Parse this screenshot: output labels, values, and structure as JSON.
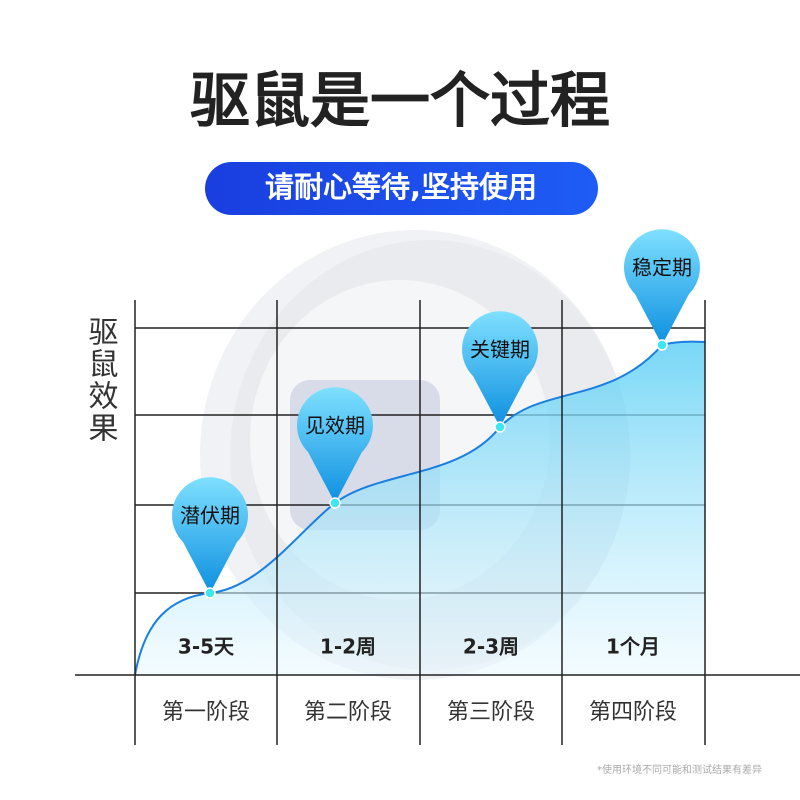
{
  "title": "驱鼠是一个过程",
  "subtitle": "请耐心等待,坚持使用",
  "y_axis_label": "驱鼠效果",
  "stages": [
    {
      "pin": "潜伏期",
      "duration": "3-5天",
      "name": "第一阶段"
    },
    {
      "pin": "见效期",
      "duration": "1-2周",
      "name": "第二阶段"
    },
    {
      "pin": "关键期",
      "duration": "2-3周",
      "name": "第三阶段"
    },
    {
      "pin": "稳定期",
      "duration": "1个月",
      "name": "第四阶段"
    }
  ],
  "footnote": "*使用环境不同可能和测试结果有差异"
}
